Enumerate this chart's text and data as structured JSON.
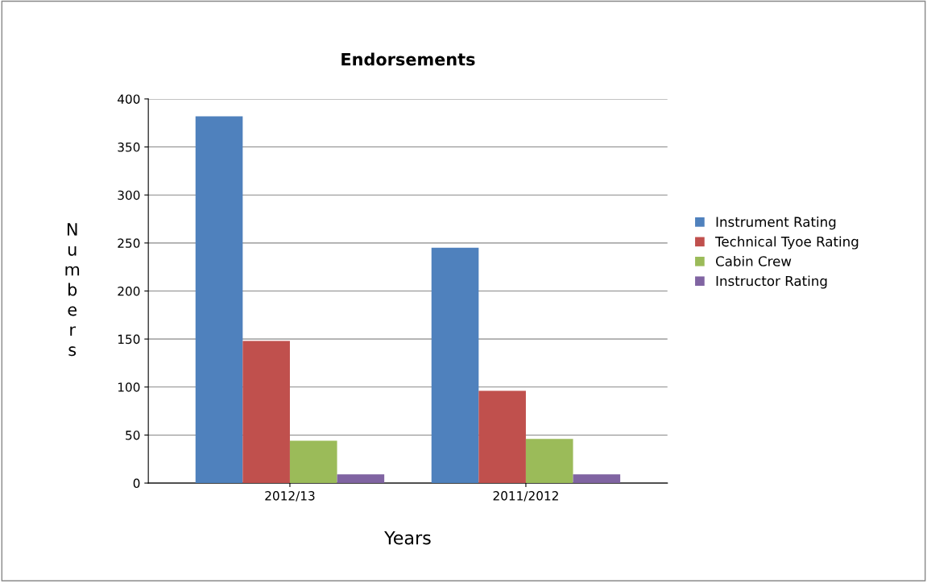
{
  "chart_data": {
    "type": "bar",
    "title": "Endorsements",
    "xlabel": "Years",
    "ylabel": "Numbers",
    "categories": [
      "2012/13",
      "2011/2012"
    ],
    "series": [
      {
        "name": "Instrument Rating",
        "color": "#4f81bd",
        "values": [
          382,
          245
        ]
      },
      {
        "name": "Technical Tyoe Rating",
        "color": "#c0504d",
        "values": [
          148,
          96
        ]
      },
      {
        "name": "Cabin Crew",
        "color": "#9bbb59",
        "values": [
          44,
          46
        ]
      },
      {
        "name": "Instructor Rating",
        "color": "#8064a2",
        "values": [
          9,
          9
        ]
      }
    ],
    "ylim": [
      0,
      400
    ],
    "yticks": [
      0,
      50,
      100,
      150,
      200,
      250,
      300,
      350,
      400
    ],
    "grid": "y",
    "legend": "right"
  }
}
